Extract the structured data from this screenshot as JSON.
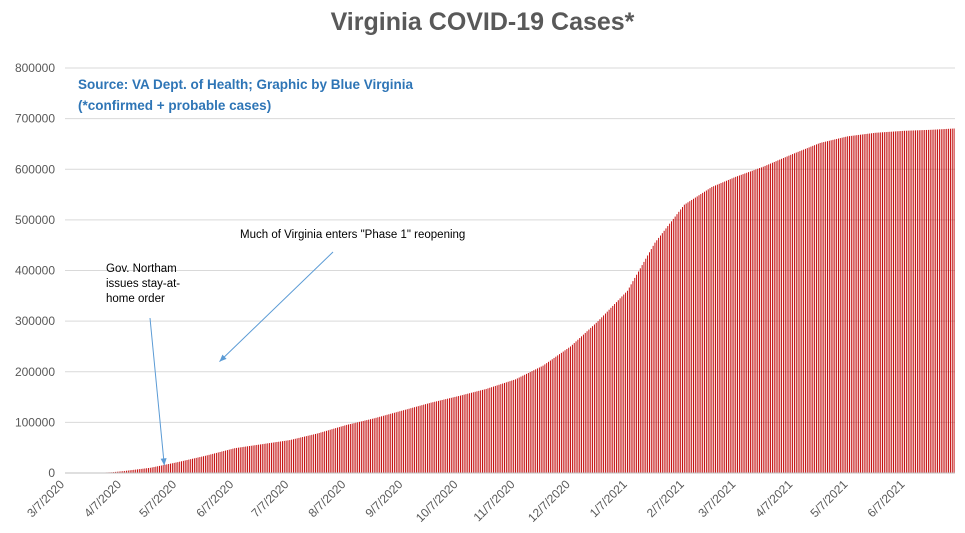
{
  "chart_data": {
    "type": "bar",
    "title": "Virginia COVID-19 Cases*",
    "xlabel": "",
    "ylabel": "",
    "ylim": [
      0,
      800000
    ],
    "y_ticks": [
      "800000",
      "700000",
      "600000",
      "500000",
      "400000",
      "300000",
      "200000",
      "100000",
      "0"
    ],
    "x_tick_labels": [
      "3/7/2020",
      "4/7/2020",
      "5/7/2020",
      "6/7/2020",
      "7/7/2020",
      "8/7/2020",
      "9/7/2020",
      "10/7/2020",
      "11/7/2020",
      "12/7/2020",
      "1/7/2021",
      "2/7/2021",
      "3/7/2021",
      "4/7/2021",
      "5/7/2021",
      "6/7/2021"
    ],
    "bar_color": "#c00000",
    "grid": true,
    "series": [
      {
        "values": [
          {
            "x": "3/7/2020",
            "y": 0
          },
          {
            "x": "3/22/2020",
            "y": 220
          },
          {
            "x": "4/1/2020",
            "y": 1500
          },
          {
            "x": "4/7/2020",
            "y": 3600
          },
          {
            "x": "4/22/2020",
            "y": 10300
          },
          {
            "x": "5/7/2020",
            "y": 21500
          },
          {
            "x": "5/22/2020",
            "y": 34000
          },
          {
            "x": "6/7/2020",
            "y": 49000
          },
          {
            "x": "6/22/2020",
            "y": 57000
          },
          {
            "x": "7/7/2020",
            "y": 65000
          },
          {
            "x": "7/22/2020",
            "y": 78000
          },
          {
            "x": "8/7/2020",
            "y": 95000
          },
          {
            "x": "8/22/2020",
            "y": 108000
          },
          {
            "x": "9/7/2020",
            "y": 124000
          },
          {
            "x": "9/22/2020",
            "y": 139000
          },
          {
            "x": "10/7/2020",
            "y": 152000
          },
          {
            "x": "10/22/2020",
            "y": 166000
          },
          {
            "x": "11/7/2020",
            "y": 185000
          },
          {
            "x": "11/22/2020",
            "y": 212000
          },
          {
            "x": "12/7/2020",
            "y": 250000
          },
          {
            "x": "12/22/2020",
            "y": 300000
          },
          {
            "x": "1/7/2021",
            "y": 360000
          },
          {
            "x": "1/22/2021",
            "y": 455000
          },
          {
            "x": "2/7/2021",
            "y": 530000
          },
          {
            "x": "2/22/2021",
            "y": 565000
          },
          {
            "x": "3/7/2021",
            "y": 585000
          },
          {
            "x": "3/22/2021",
            "y": 605000
          },
          {
            "x": "4/7/2021",
            "y": 630000
          },
          {
            "x": "4/22/2021",
            "y": 652000
          },
          {
            "x": "5/7/2021",
            "y": 665000
          },
          {
            "x": "5/22/2021",
            "y": 672000
          },
          {
            "x": "6/7/2021",
            "y": 676000
          },
          {
            "x": "6/22/2021",
            "y": 678000
          },
          {
            "x": "7/4/2021",
            "y": 680500
          }
        ]
      }
    ],
    "annotations": [
      {
        "lines": [
          "Gov. Northam",
          "issues stay-at-",
          "home order"
        ],
        "arrow_target": {
          "x": "4/30/2020",
          "y": 15000
        }
      },
      {
        "lines": [
          "Much of Virginia enters \"Phase 1\" reopening"
        ],
        "arrow_target": {
          "x": "5/30/2020",
          "y": 220000
        }
      }
    ],
    "source_note": [
      "Source: VA Dept. of Health; Graphic by Blue Virginia",
      "(*confirmed + probable cases)"
    ]
  }
}
